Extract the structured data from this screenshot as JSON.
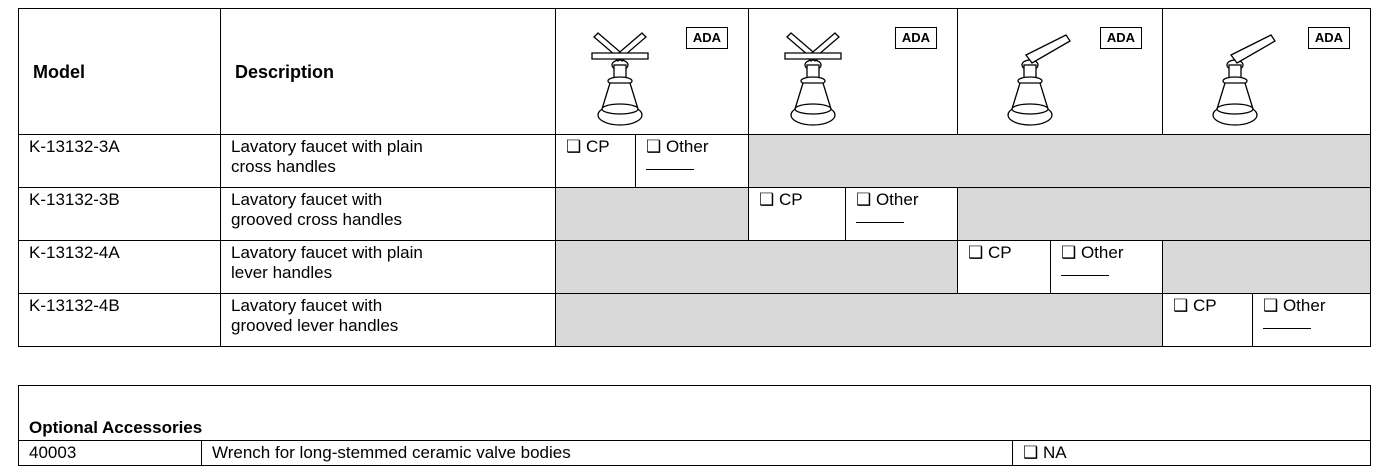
{
  "table": {
    "header": {
      "model": "Model",
      "description": "Description",
      "badges": [
        "ADA",
        "ADA",
        "ADA",
        "ADA"
      ]
    },
    "rows": [
      {
        "model": "K-13132-3A",
        "description": [
          "Lavatory faucet with plain",
          "cross handles"
        ],
        "options": [
          "❑ CP",
          "❑ Other"
        ]
      },
      {
        "model": "K-13132-3B",
        "description": [
          "Lavatory faucet with",
          "grooved cross handles"
        ],
        "options": [
          "❑ CP",
          "❑ Other"
        ]
      },
      {
        "model": "K-13132-4A",
        "description": [
          "Lavatory faucet with plain",
          "lever handles"
        ],
        "options": [
          "❑ CP",
          "❑ Other"
        ]
      },
      {
        "model": "K-13132-4B",
        "description": [
          "Lavatory faucet with",
          "grooved lever handles"
        ],
        "options": [
          "❑ CP",
          "❑ Other"
        ]
      }
    ]
  },
  "accessories": {
    "title": "Optional Accessories",
    "rows": [
      {
        "model": "40003",
        "description": "Wrench for long-stemmed ceramic valve bodies",
        "option": "❑ NA"
      }
    ]
  }
}
